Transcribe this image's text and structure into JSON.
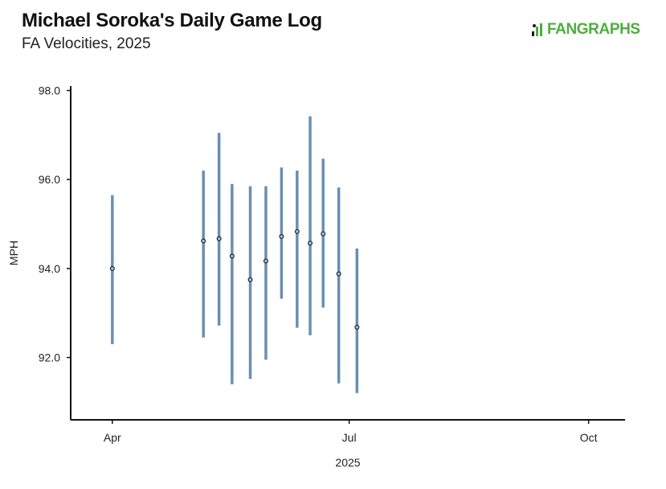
{
  "header": {
    "title": "Michael Soroka's Daily Game Log",
    "subtitle": "FA Velocities, 2025"
  },
  "logo": {
    "text": "FANGRAPHS",
    "color": "#4caf3c"
  },
  "chart_data": {
    "type": "errorbar",
    "xlabel": "2025",
    "ylabel": "MPH",
    "ylim": [
      90.6,
      98.1
    ],
    "x_ticks": [
      {
        "date": "2025-04-01",
        "label": "Apr"
      },
      {
        "date": "2025-07-01",
        "label": "Jul"
      },
      {
        "date": "2025-10-01",
        "label": "Oct"
      }
    ],
    "y_ticks": [
      {
        "value": 92,
        "label": "92.0"
      },
      {
        "value": 94,
        "label": "94.0"
      },
      {
        "value": 96,
        "label": "96.0"
      },
      {
        "value": 98,
        "label": "98.0"
      }
    ],
    "xlim": [
      "2025-03-16",
      "2025-10-15"
    ],
    "series": [
      {
        "points": [
          {
            "date": "2025-04-01",
            "avg": 94.0,
            "low": 92.3,
            "high": 95.65
          },
          {
            "date": "2025-05-06",
            "avg": 94.62,
            "low": 92.45,
            "high": 96.2
          },
          {
            "date": "2025-05-12",
            "avg": 94.67,
            "low": 92.72,
            "high": 97.05
          },
          {
            "date": "2025-05-17",
            "avg": 94.28,
            "low": 91.4,
            "high": 95.9
          },
          {
            "date": "2025-05-24",
            "avg": 93.75,
            "low": 91.52,
            "high": 95.85
          },
          {
            "date": "2025-05-30",
            "avg": 94.17,
            "low": 91.95,
            "high": 95.85
          },
          {
            "date": "2025-06-05",
            "avg": 94.72,
            "low": 93.32,
            "high": 96.27
          },
          {
            "date": "2025-06-11",
            "avg": 94.83,
            "low": 92.67,
            "high": 96.2
          },
          {
            "date": "2025-06-16",
            "avg": 94.57,
            "low": 92.5,
            "high": 97.42
          },
          {
            "date": "2025-06-21",
            "avg": 94.78,
            "low": 93.12,
            "high": 96.47
          },
          {
            "date": "2025-06-27",
            "avg": 93.88,
            "low": 91.42,
            "high": 95.82
          },
          {
            "date": "2025-07-04",
            "avg": 92.68,
            "low": 91.2,
            "high": 94.45
          }
        ]
      }
    ],
    "bar_color": "#6a8fb1",
    "point_color": "#222222",
    "grid": false
  }
}
